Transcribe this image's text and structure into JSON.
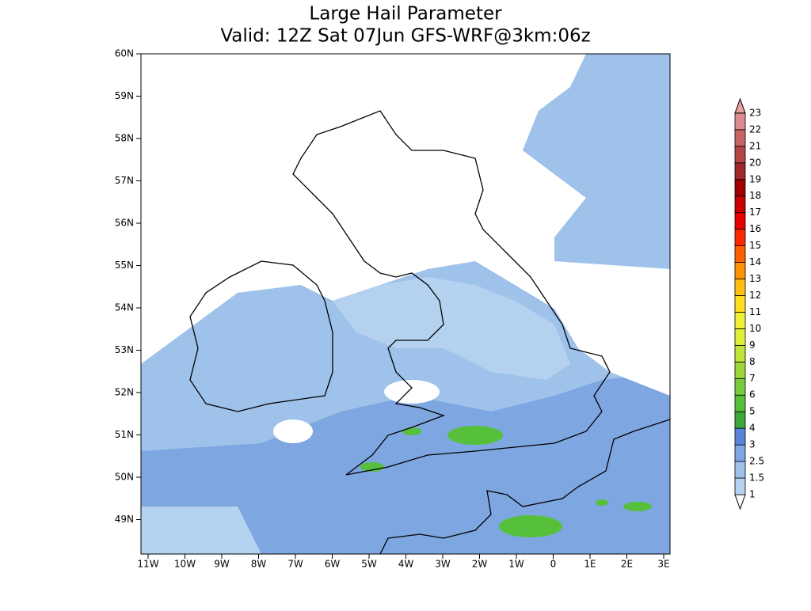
{
  "title": "Large Hail Parameter",
  "subtitle": "Valid: 12Z Sat 07Jun GFS-WRF@3km:06z",
  "lat_ticks": [
    "60N",
    "59N",
    "58N",
    "57N",
    "56N",
    "55N",
    "54N",
    "53N",
    "52N",
    "51N",
    "50N",
    "49N"
  ],
  "lon_ticks": [
    "11W",
    "10W",
    "9W",
    "8W",
    "7W",
    "6W",
    "5W",
    "4W",
    "3W",
    "2W",
    "1W",
    "0",
    "1E",
    "2E",
    "3E"
  ],
  "colorbar": {
    "levels": [
      1,
      1.5,
      2.5,
      3,
      4,
      5,
      6,
      7,
      8,
      9,
      10,
      11,
      12,
      13,
      14,
      15,
      16,
      17,
      18,
      19,
      20,
      21,
      22,
      23
    ],
    "colors": [
      "#ffffff",
      "#b4d2f0",
      "#9ec2ea",
      "#7ea6e0",
      "#5a84d8",
      "#3aa83a",
      "#56c03a",
      "#78cc3c",
      "#9cd83c",
      "#c0e43a",
      "#e0f03a",
      "#f0f03a",
      "#ffe020",
      "#ffbe10",
      "#ff9000",
      "#ff6000",
      "#ff2a00",
      "#e60000",
      "#c80000",
      "#a00000",
      "#a02828",
      "#b44646",
      "#c86464",
      "#dc8c8c",
      "#e6a0a0"
    ]
  }
}
